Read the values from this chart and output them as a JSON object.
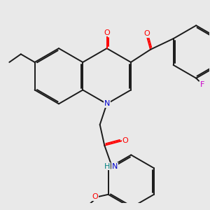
{
  "background_color": "#e9e9e9",
  "bond_color": "#1a1a1a",
  "bond_width": 1.4,
  "atom_colors": {
    "O": "#ff0000",
    "N": "#0000cc",
    "F": "#cc00cc",
    "H": "#008080",
    "C": "#1a1a1a"
  },
  "figsize": [
    3.0,
    3.0
  ],
  "dpi": 100
}
